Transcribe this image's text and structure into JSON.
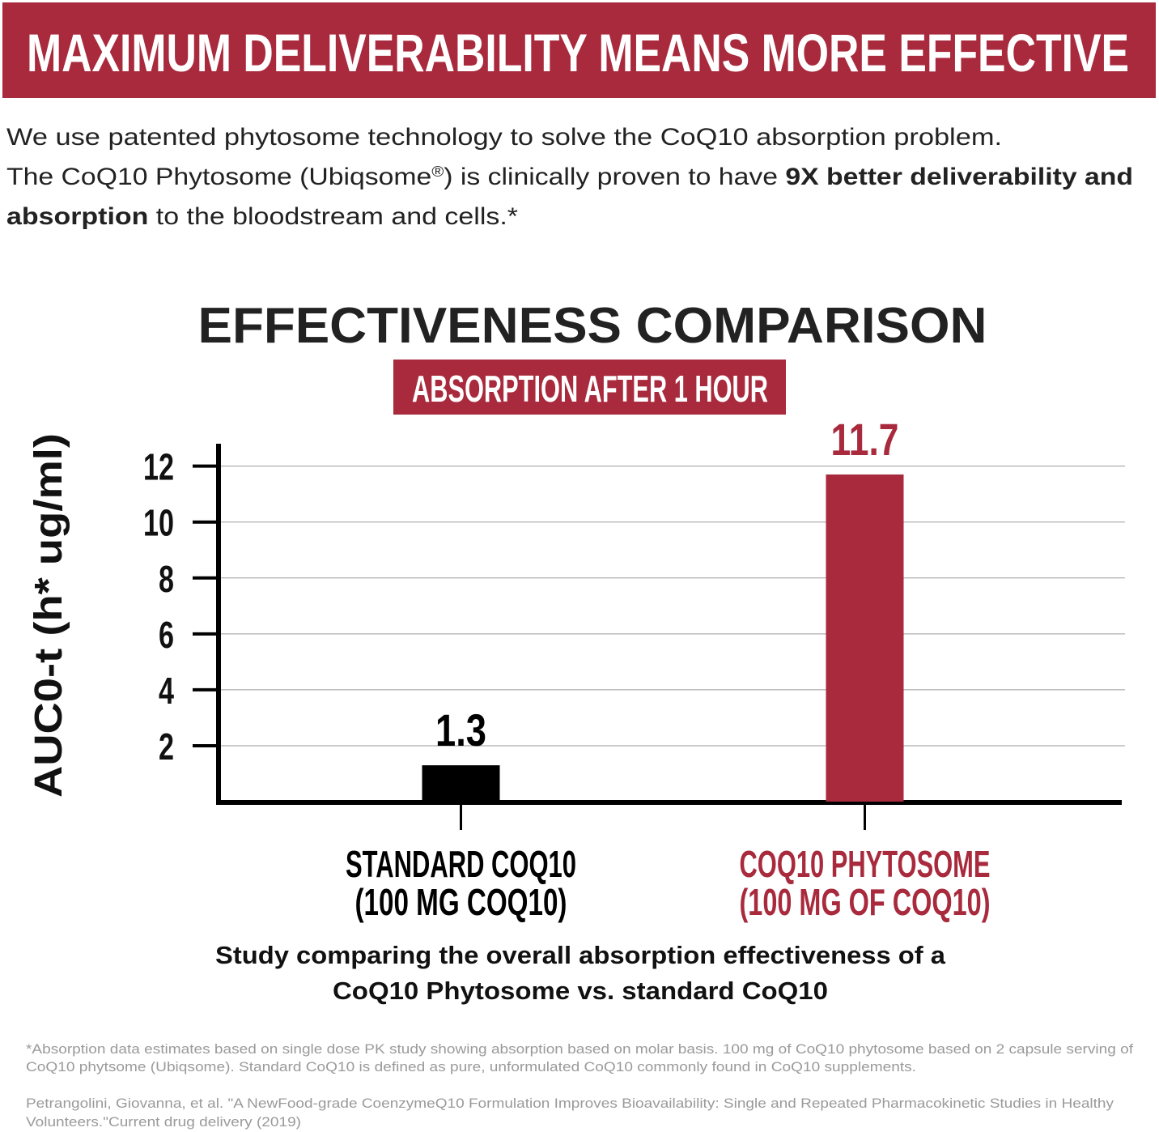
{
  "header": {
    "title": "MAXIMUM DELIVERABILITY MEANS MORE EFFECTIVE"
  },
  "intro": [
    [
      {
        "text": "We use patented phytosome technology to solve the CoQ10 absorption problem."
      }
    ],
    [
      {
        "text": "The CoQ10 Phytosome (Ubiqsome"
      },
      {
        "text": "®",
        "style": "sup"
      },
      {
        "text": ") is clinically proven to have "
      },
      {
        "text": "9X better deliverability and",
        "style": "bold"
      }
    ],
    [
      {
        "text": "absorption",
        "style": "bold"
      },
      {
        "text": " to the bloodstream and cells.*"
      }
    ]
  ],
  "chart_data": {
    "type": "bar",
    "title": "EFFECTIVENESS COMPARISON",
    "subtitle": "ABSORPTION AFTER 1 HOUR",
    "y_label": "AUC0-t (h* ug/ml)",
    "categories": [
      [
        "STANDARD COQ10",
        "(100 MG COQ10)"
      ],
      [
        "COQ10 PHYTOSOME",
        "(100 MG OF COQ10)"
      ]
    ],
    "values": [
      1.3,
      11.7
    ],
    "colors": [
      "#000000",
      "#a82a3c"
    ],
    "ylim": [
      0,
      12.8
    ],
    "yticks": [
      2,
      4,
      6,
      8,
      10,
      12
    ],
    "grid": true
  },
  "caption": [
    "Study comparing the overall absorption effectiveness of a",
    "CoQ10 Phytosome vs. standard CoQ10"
  ],
  "footnotes": [
    "*Absorption data estimates based on single dose PK study showing absorption based on molar basis. 100 mg of CoQ10 phytosome based on 2 capsule serving of",
    "CoQ10 phytsome (Ubiqsome). Standard CoQ10 is defined as pure, unformulated CoQ10 commonly found in CoQ10 supplements.",
    "Petrangolini, Giovanna, et al. \"A NewFood-grade CoenzymeQ10 Formulation Improves Bioavailability: Single and Repeated Pharmacokinetic Studies in Healthy",
    "Volunteers.\"Current drug delivery (2019)"
  ]
}
